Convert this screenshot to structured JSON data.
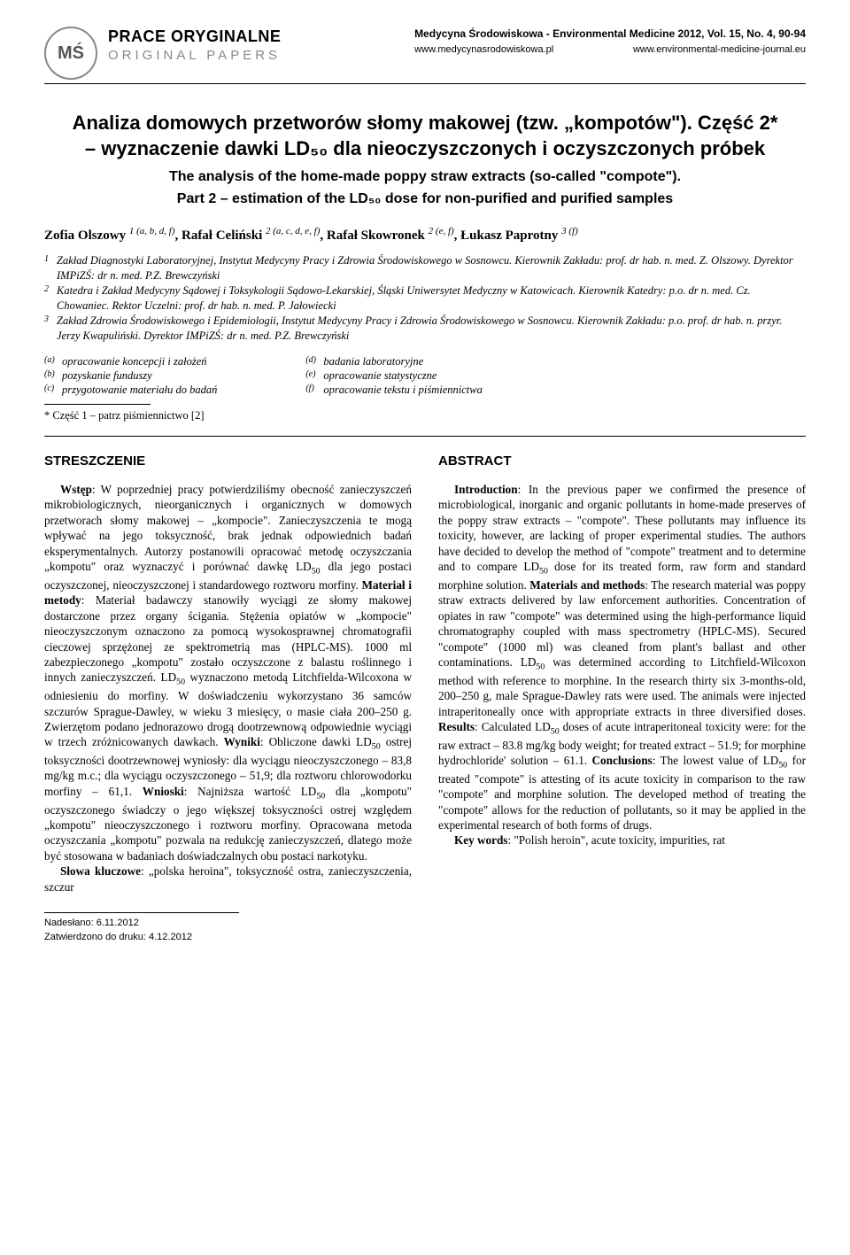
{
  "header": {
    "logo_text": "MŚ",
    "section_pl": "PRACE ORYGINALNE",
    "section_en": "ORIGINAL PAPERS",
    "journal_line": "Medycyna Środowiskowa - Environmental Medicine 2012, Vol. 15, No. 4, 90-94",
    "url_left": "www.medycynasrodowiskowa.pl",
    "url_right": "www.environmental-medicine-journal.eu"
  },
  "title": {
    "line1": "Analiza domowych przetworów słomy makowej (tzw. „kompotów\"). Część 2* – wyznaczenie dawki LD₅₀ dla nieoczyszczonych i oczyszczonych próbek",
    "sub1": "The analysis of the home-made poppy straw extracts (so-called \"compote\").",
    "sub2": "Part 2 – estimation of the LD₅₀ dose for non-purified and purified samples"
  },
  "authors_html": "Zofia Olszowy <sup>1 (a, b, d, f)</sup>, Rafał Celiński <sup>2 (a, c, d, e, f)</sup>, Rafał Skowronek <sup>2 (e, f)</sup>, Łukasz Paprotny <sup>3 (f)</sup>",
  "affiliations": [
    {
      "n": "1",
      "text": "Zakład Diagnostyki Laboratoryjnej, Instytut Medycyny Pracy i Zdrowia Środowiskowego w Sosnowcu. Kierownik Zakładu: prof. dr hab. n. med. Z. Olszowy. Dyrektor IMPiZŚ: dr n. med. P.Z. Brewczyński"
    },
    {
      "n": "2",
      "text": "Katedra i Zakład Medycyny Sądowej i Toksykologii Sądowo-Lekarskiej, Śląski Uniwersytet Medyczny w Katowicach. Kierownik Katedry: p.o. dr n. med. Cz. Chowaniec. Rektor Uczelni: prof. dr hab. n. med. P. Jałowiecki"
    },
    {
      "n": "3",
      "text": "Zakład Zdrowia Środowiskowego i Epidemiologii, Instytut Medycyny Pracy i Zdrowia Środowiskowego w Sosnowcu. Kierownik Zakładu: p.o. prof. dr hab. n. przyr. Jerzy Kwapuliński. Dyrektor IMPiZŚ: dr n. med. P.Z. Brewczyński"
    }
  ],
  "contributions": {
    "left": [
      {
        "tag": "(a)",
        "text": "opracowanie koncepcji i założeń"
      },
      {
        "tag": "(b)",
        "text": "pozyskanie funduszy"
      },
      {
        "tag": "(c)",
        "text": "przygotowanie materiału do badań"
      }
    ],
    "right": [
      {
        "tag": "(d)",
        "text": "badania laboratoryjne"
      },
      {
        "tag": "(e)",
        "text": "opracowanie statystyczne"
      },
      {
        "tag": "(f)",
        "text": "opracowanie tekstu i piśmiennictwa"
      }
    ]
  },
  "part_note": "* Część 1 – patrz piśmiennictwo [2]",
  "abstracts": {
    "pl_heading": "STRESZCZENIE",
    "en_heading": "ABSTRACT",
    "pl_body": "<span class=\"lead\">Wstęp</span>: W poprzedniej pracy potwierdziliśmy obecność zanieczyszczeń mikrobiologicznych, nieorganicznych i organicznych w domowych przetworach słomy makowej – „kompocie\". Zanieczyszczenia te mogą wpływać na jego toksyczność, brak jednak odpowiednich badań eksperymentalnych. Autorzy postanowili opracować metodę oczyszczania „kompotu\" oraz wyznaczyć i porównać dawkę LD<sub>50</sub> dla jego postaci oczyszczonej, nieoczyszczonej i standardowego roztworu morfiny. <span class=\"lead\">Materiał i metody</span>: Materiał badawczy stanowiły wyciągi ze słomy makowej dostarczone przez organy ścigania. Stężenia opiatów w „kompocie\" nieoczyszczonym oznaczono za pomocą wysokosprawnej chromatografii cieczowej sprzężonej ze spektrometrią mas (HPLC-MS). 1000 ml zabezpieczonego „kompotu\" zostało oczyszczone z balastu roślinnego i innych zanieczyszczeń. LD<sub>50</sub> wyznaczono metodą Litchfielda-Wilcoxona w odniesieniu do morfiny. W doświadczeniu wykorzystano 36 samców szczurów Sprague-Dawley, w wieku 3 miesięcy, o masie ciała 200–250 g. Zwierzętom podano jednorazowo drogą dootrzewnową odpowiednie wyciągi w trzech zróżnicowanych dawkach. <span class=\"lead\">Wyniki</span>: Obliczone dawki LD<sub>50</sub> ostrej toksyczności dootrzewnowej wyniosły: dla wyciągu nieoczyszczonego – 83,8 mg/kg m.c.; dla wyciągu oczyszczonego – 51,9; dla roztworu chlorowodorku morfiny – 61,1. <span class=\"lead\">Wnioski</span>: Najniższa wartość LD<sub>50</sub> dla „kompotu\" oczyszczonego świadczy o jego większej toksyczności ostrej względem „kompotu\" nieoczyszczonego i roztworu morfiny. Opracowana metoda oczyszczania „kompotu\" pozwala na redukcję zanieczyszczeń, dlatego może być stosowana w badaniach doświadczalnych obu postaci narkotyku.",
    "pl_keywords": "<span class=\"lead\">Słowa kluczowe</span>: „polska heroina\", toksyczność ostra, zanieczyszczenia, szczur",
    "en_body": "<span class=\"lead\">Introduction</span>: In the previous paper we confirmed the presence of microbiological, inorganic and organic pollutants in home-made preserves of the poppy straw extracts – \"compote\". These pollutants may influence its toxicity, however, are lacking of proper experimental studies. The authors have decided to develop the method of \"compote\" treatment and to determine and to compare LD<sub>50</sub> dose for its treated form, raw form and standard morphine solution. <span class=\"lead\">Materials and methods</span>: The research material was poppy straw extracts delivered by law enforcement authorities. Concentration of opiates in raw \"compote\" was determined using the high-performance liquid chromatography coupled with mass spectrometry (HPLC-MS). Secured \"compote\" (1000 ml) was cleaned from plant's ballast and other contaminations. LD<sub>50</sub> was determined according to Litchfield-Wilcoxon method with reference to morphine. In the research thirty six 3-months-old, 200–250 g, male Sprague-Dawley rats were used. The animals were injected intraperitoneally once with appropriate extracts in three diversified doses. <span class=\"lead\">Results</span>: Calculated LD<sub>50</sub> doses of acute intraperitoneal toxicity were: for the raw extract – 83.8 mg/kg body weight; for treated extract – 51.9; for morphine hydrochloride' solution – 61.1. <span class=\"lead\">Conclusions</span>: The lowest value of LD<sub>50</sub> for treated \"compote\" is attesting of its acute toxicity in comparison to the raw \"compote\" and morphine solution. The developed method of treating the \"compote\" allows for the reduction of pollutants, so it may be applied in the experimental research of both forms of drugs.",
    "en_keywords": "<span class=\"lead\">Key words</span>: \"Polish heroin\", acute toxicity, impurities, rat"
  },
  "footer": {
    "received": "Nadesłano: 6.11.2012",
    "approved": "Zatwierdzono do druku: 4.12.2012"
  }
}
